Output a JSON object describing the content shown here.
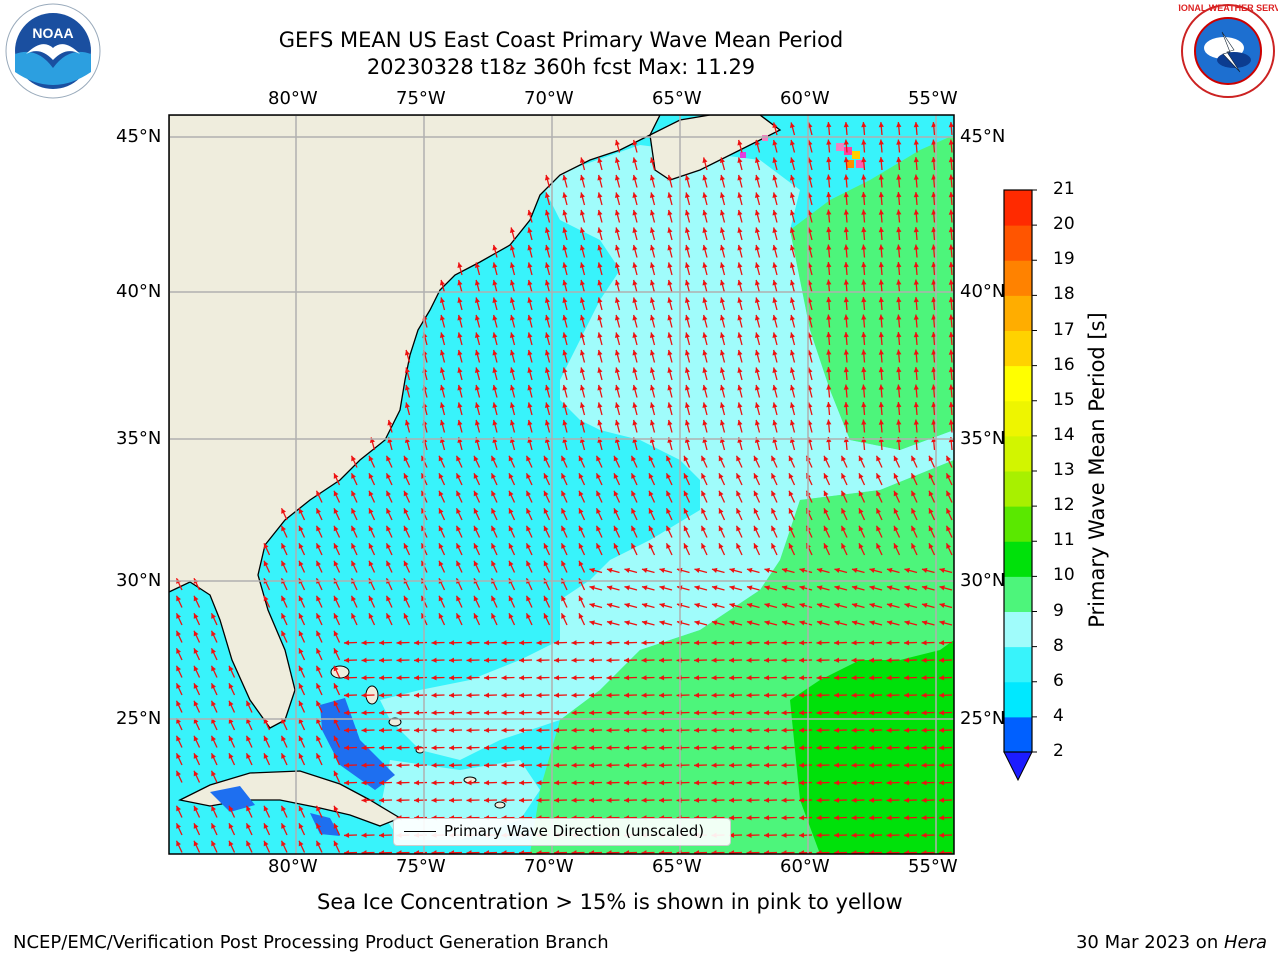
{
  "header": {
    "title_line1": "GEFS MEAN US East Coast Primary Wave Mean Period",
    "title_line2": "20230328 t18z 360h fcst   Max: 11.29"
  },
  "logos": {
    "left": {
      "name": "noaa-logo",
      "text": "NOAA"
    },
    "right": {
      "name": "nws-logo",
      "text": "NATIONAL WEATHER SERVICE"
    }
  },
  "map": {
    "lon_labels": [
      "80°W",
      "75°W",
      "70°W",
      "65°W",
      "60°W",
      "55°W"
    ],
    "lat_labels": [
      "45°N",
      "40°N",
      "35°N",
      "30°N",
      "25°N"
    ],
    "colors": {
      "land": "#efeddd",
      "ocean": "#38f3fb",
      "light": "#a0fcfb",
      "green": "#4df57b",
      "dgreen": "#00e10a",
      "arrow": "#ee1111",
      "grid": "#b0b0b0"
    }
  },
  "legend": {
    "label": "Primary Wave Direction (unscaled)"
  },
  "colorbar": {
    "label": "Primary Wave Mean Period [s]",
    "ticks": [
      "2",
      "4",
      "6",
      "8",
      "9",
      "10",
      "11",
      "12",
      "13",
      "14",
      "15",
      "16",
      "17",
      "18",
      "19",
      "20",
      "21"
    ],
    "colors": [
      "#0060ff",
      "#00e8ff",
      "#38f3fb",
      "#a0fcfb",
      "#4df57b",
      "#00e10a",
      "#5ae800",
      "#a8f000",
      "#d2f500",
      "#eef500",
      "#ffff00",
      "#ffd200",
      "#ffad00",
      "#ff8200",
      "#ff5500",
      "#ff2a00",
      "#ff0000"
    ],
    "under_color": "#1c1cff"
  },
  "caption": "Sea Ice Concentration > 15% is shown in pink to yellow",
  "footer": {
    "left": "NCEP/EMC/Verification Post Processing Product Generation Branch",
    "right_date": "30 Mar 2023 on ",
    "right_host": "Hera"
  }
}
